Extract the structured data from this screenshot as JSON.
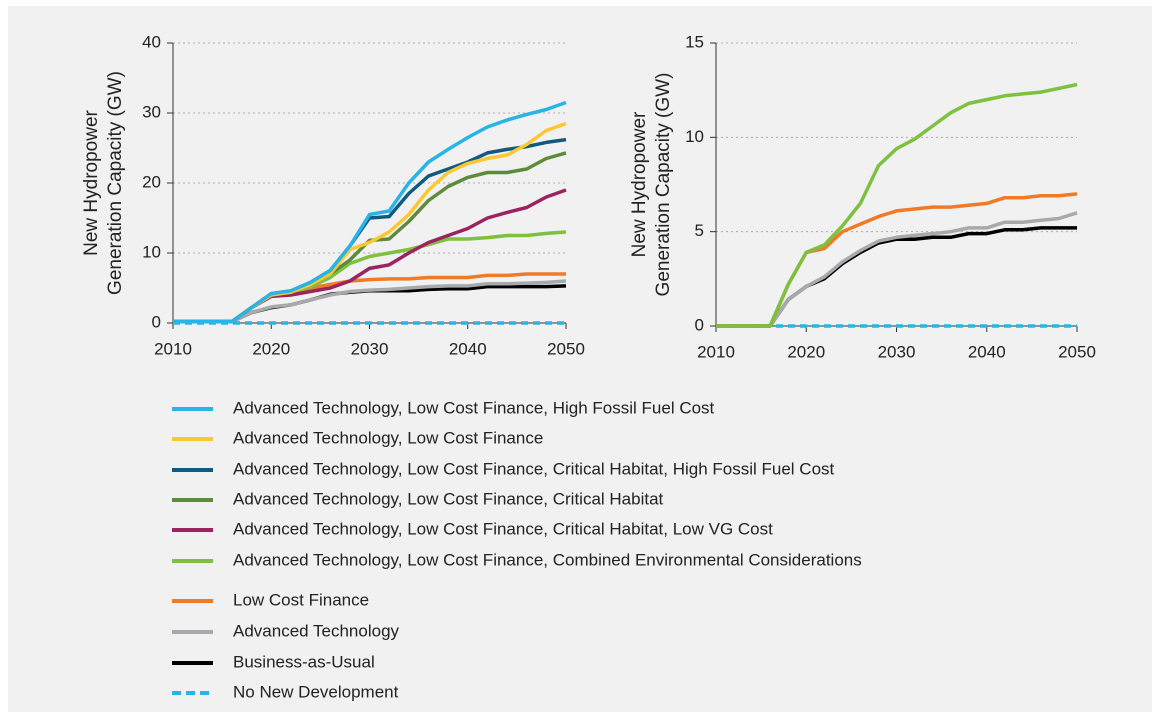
{
  "chart_data": [
    {
      "type": "line",
      "ylabel": [
        "New Hydropower",
        "Generation Capacity (GW)"
      ],
      "x": [
        2010,
        2012,
        2014,
        2016,
        2018,
        2020,
        2022,
        2024,
        2026,
        2028,
        2030,
        2032,
        2034,
        2036,
        2038,
        2040,
        2042,
        2044,
        2046,
        2048,
        2050
      ],
      "xlim": [
        2010,
        2050
      ],
      "xticks": [
        2010,
        2020,
        2030,
        2040,
        2050
      ],
      "ylim": [
        0,
        40
      ],
      "yticks": [
        0,
        10,
        20,
        30,
        40
      ],
      "grid": true,
      "series": [
        {
          "name": "Advanced Technology, Low Cost Finance, High Fossil Fuel Cost",
          "color": "#29b4e6",
          "values": [
            0.2,
            0.2,
            0.2,
            0.2,
            2.2,
            4.2,
            4.6,
            5.8,
            7.5,
            11,
            15.5,
            16,
            20,
            23,
            24.8,
            26.5,
            28,
            29,
            29.8,
            30.5,
            31.5
          ]
        },
        {
          "name": "Advanced Technology, Low Cost Finance",
          "color": "#fdc82f",
          "values": [
            0.2,
            0.2,
            0.2,
            0.2,
            2.2,
            4,
            4.4,
            5.5,
            7,
            10.5,
            11.5,
            13,
            15.5,
            19,
            21.5,
            22.8,
            23.5,
            24,
            25.5,
            27.5,
            28.5
          ]
        },
        {
          "name": "Advanced Technology, Low Cost Finance, Critical Habitat, High Fossil Fuel Cost",
          "color": "#0f5a7e",
          "values": [
            0.2,
            0.2,
            0.2,
            0.2,
            2.2,
            4.2,
            4.6,
            5.8,
            7.5,
            11,
            15,
            15.2,
            18.5,
            21,
            22,
            23,
            24.3,
            24.8,
            25.2,
            25.8,
            26.2
          ]
        },
        {
          "name": "Advanced Technology, Low Cost Finance, Critical Habitat",
          "color": "#5e8b3a",
          "values": [
            0.2,
            0.2,
            0.2,
            0.2,
            2.2,
            4,
            4.4,
            5.5,
            7,
            9,
            11.8,
            12,
            14.5,
            17.5,
            19.5,
            20.8,
            21.5,
            21.5,
            22,
            23.5,
            24.3
          ]
        },
        {
          "name": "Advanced Technology, Low Cost Finance, Critical Habitat, Low VG Cost",
          "color": "#9b2360",
          "values": [
            0.2,
            0.2,
            0.2,
            0.2,
            2.2,
            3.8,
            4,
            4.5,
            5,
            6,
            7.8,
            8.3,
            10,
            11.5,
            12.5,
            13.5,
            15,
            15.8,
            16.5,
            18,
            19
          ]
        },
        {
          "name": "Advanced Technology, Low Cost Finance, Combined Environmental Considerations",
          "color": "#7ec13f",
          "values": [
            0.2,
            0.2,
            0.2,
            0.2,
            2.2,
            3.9,
            4.3,
            5.2,
            6.5,
            8.5,
            9.5,
            10,
            10.5,
            11.2,
            12,
            12,
            12.2,
            12.5,
            12.5,
            12.8,
            13
          ]
        },
        {
          "name": "Low Cost Finance",
          "color": "#f07b27",
          "values": [
            0.2,
            0.2,
            0.2,
            0.2,
            2.2,
            3.9,
            4.2,
            5,
            5.5,
            6,
            6.2,
            6.3,
            6.3,
            6.5,
            6.5,
            6.5,
            6.8,
            6.8,
            7,
            7,
            7
          ]
        },
        {
          "name": "Advanced Technology",
          "color": "#a7a9ac",
          "values": [
            0.2,
            0.2,
            0.2,
            0.2,
            1.5,
            2.3,
            2.6,
            3.3,
            4,
            4.5,
            4.7,
            4.8,
            5,
            5.2,
            5.3,
            5.3,
            5.6,
            5.6,
            5.7,
            5.8,
            6
          ]
        },
        {
          "name": "Business-as-Usual",
          "color": "#000000",
          "values": [
            0.2,
            0.2,
            0.2,
            0.2,
            1.5,
            2.2,
            2.6,
            3.3,
            4.1,
            4.4,
            4.6,
            4.6,
            4.6,
            4.8,
            4.9,
            4.9,
            5.2,
            5.2,
            5.2,
            5.2,
            5.3
          ]
        },
        {
          "name": "No New Development",
          "color": "#29b4e6",
          "dash": true,
          "values": [
            0,
            0,
            0,
            0,
            0,
            0,
            0,
            0,
            0,
            0,
            0,
            0,
            0,
            0,
            0,
            0,
            0,
            0,
            0,
            0,
            0
          ]
        }
      ]
    },
    {
      "type": "line",
      "ylabel": [
        "New Hydropower",
        "Generation Capacity (GW)"
      ],
      "x": [
        2010,
        2012,
        2014,
        2016,
        2018,
        2020,
        2022,
        2024,
        2026,
        2028,
        2030,
        2032,
        2034,
        2036,
        2038,
        2040,
        2042,
        2044,
        2046,
        2048,
        2050
      ],
      "xlim": [
        2010,
        2050
      ],
      "xticks": [
        2010,
        2020,
        2030,
        2040,
        2050
      ],
      "ylim": [
        0,
        15
      ],
      "yticks": [
        0,
        5,
        10,
        15
      ],
      "grid": true,
      "series": [
        {
          "name": "Advanced Technology, Low Cost Finance, Combined Environmental Considerations",
          "color": "#7ec13f",
          "values": [
            0,
            0,
            0,
            0,
            2.2,
            3.9,
            4.3,
            5.3,
            6.5,
            8.5,
            9.4,
            9.9,
            10.6,
            11.3,
            11.8,
            12,
            12.2,
            12.3,
            12.4,
            12.6,
            12.8
          ]
        },
        {
          "name": "Low Cost Finance",
          "color": "#f07b27",
          "values": [
            0,
            0,
            0,
            0,
            2.2,
            3.9,
            4.1,
            5,
            5.4,
            5.8,
            6.1,
            6.2,
            6.3,
            6.3,
            6.4,
            6.5,
            6.8,
            6.8,
            6.9,
            6.9,
            7
          ]
        },
        {
          "name": "Advanced Technology",
          "color": "#a7a9ac",
          "values": [
            0,
            0,
            0,
            0,
            1.4,
            2.1,
            2.6,
            3.4,
            4,
            4.5,
            4.7,
            4.8,
            4.9,
            5,
            5.2,
            5.2,
            5.5,
            5.5,
            5.6,
            5.7,
            6
          ]
        },
        {
          "name": "Business-as-Usual",
          "color": "#000000",
          "values": [
            0,
            0,
            0,
            0,
            1.4,
            2.1,
            2.5,
            3.3,
            3.9,
            4.4,
            4.6,
            4.6,
            4.7,
            4.7,
            4.9,
            4.9,
            5.1,
            5.1,
            5.2,
            5.2,
            5.2
          ]
        },
        {
          "name": "No New Development",
          "color": "#29b4e6",
          "dash": true,
          "values": [
            0,
            0,
            0,
            0,
            0,
            0,
            0,
            0,
            0,
            0,
            0,
            0,
            0,
            0,
            0,
            0,
            0,
            0,
            0,
            0,
            0
          ]
        }
      ]
    }
  ]
}
